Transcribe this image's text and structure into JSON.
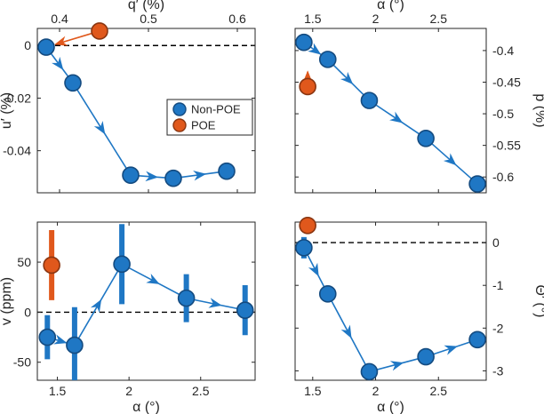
{
  "colors": {
    "non_poe": "#1f77c4",
    "non_poe_edge": "#144b80",
    "poe": "#e0581c",
    "poe_edge": "#8a3510",
    "axis": "#262626"
  },
  "legend": [
    {
      "label": "Non-POE",
      "color": "#1f77c4"
    },
    {
      "label": "POE",
      "color": "#e0581c"
    }
  ],
  "chart_data": [
    {
      "id": "top_left",
      "type": "scatter",
      "title": "",
      "xlabel": "q′ (%)",
      "ylabel": "u′ (%)",
      "xlabel_position": "top",
      "ylabel_position": "left",
      "xlim": [
        0.375,
        0.62
      ],
      "ylim": [
        -0.056,
        0.0065
      ],
      "xticks": [
        0.4,
        0.5,
        0.6
      ],
      "xticklabels": [
        "0.4",
        "0.5",
        "0.6"
      ],
      "yticks": [
        0,
        -0.02,
        -0.04
      ],
      "yticklabels": [
        "0",
        "-0.02",
        "-0.04"
      ],
      "reference_line_y": 0,
      "series": [
        {
          "name": "Non-POE",
          "x": [
            0.385,
            0.415,
            0.48,
            0.528,
            0.588
          ],
          "y": [
            -0.0006,
            -0.0142,
            -0.0493,
            -0.0505,
            -0.0478
          ],
          "yerr": [
            0.0025,
            0.001,
            0.0012,
            0.001,
            0.001
          ]
        },
        {
          "name": "POE",
          "x": [
            0.445
          ],
          "y": [
            0.0055
          ],
          "yerr": [
            0
          ]
        }
      ],
      "poe_arrow_to": [
        0.385,
        -0.0006
      ]
    },
    {
      "id": "top_right",
      "type": "scatter",
      "title": "",
      "xlabel": "α (°)",
      "ylabel": "p (%)",
      "xlabel_position": "top",
      "ylabel_position": "right",
      "xlim": [
        1.36,
        2.88
      ],
      "ylim": [
        -0.625,
        -0.365
      ],
      "xticks": [
        1.5,
        2,
        2.5
      ],
      "xticklabels": [
        "1.5",
        "2",
        "2.5"
      ],
      "yticks": [
        -0.4,
        -0.45,
        -0.5,
        -0.55,
        -0.6
      ],
      "yticklabels": [
        "-0.4",
        "-0.45",
        "-0.5",
        "-0.55",
        "-0.6"
      ],
      "series": [
        {
          "name": "Non-POE",
          "x": [
            1.43,
            1.62,
            1.95,
            2.4,
            2.81
          ],
          "y": [
            -0.387,
            -0.414,
            -0.479,
            -0.539,
            -0.611
          ],
          "yerr": [
            0.004,
            0.004,
            0.004,
            0.004,
            0.004
          ]
        },
        {
          "name": "POE",
          "x": [
            1.46
          ],
          "y": [
            -0.457
          ],
          "yerr": [
            0
          ]
        }
      ],
      "poe_arrow_to": [
        1.46,
        -0.418
      ]
    },
    {
      "id": "bottom_left",
      "type": "scatter",
      "title": "",
      "xlabel": "α (°)",
      "ylabel": "v (ppm)",
      "xlabel_position": "bottom",
      "ylabel_position": "left",
      "xlim": [
        1.36,
        2.88
      ],
      "ylim": [
        -68,
        90
      ],
      "xticks": [
        1.5,
        2,
        2.5
      ],
      "xticklabels": [
        "1.5",
        "2",
        "2.5"
      ],
      "yticks": [
        50,
        0,
        -50
      ],
      "yticklabels": [
        "50",
        "0",
        "-50"
      ],
      "reference_line_y": 0,
      "series": [
        {
          "name": "Non-POE",
          "x": [
            1.43,
            1.62,
            1.95,
            2.4,
            2.81
          ],
          "y": [
            -25,
            -33,
            48,
            14,
            2
          ],
          "yerr": [
            22,
            38,
            40,
            24,
            25
          ]
        },
        {
          "name": "POE",
          "x": [
            1.46
          ],
          "y": [
            47
          ],
          "yerr": [
            35
          ]
        }
      ]
    },
    {
      "id": "bottom_right",
      "type": "scatter",
      "title": "",
      "xlabel": "α (°)",
      "ylabel": "Θ′ (°)",
      "xlabel_position": "bottom",
      "ylabel_position": "right",
      "xlim": [
        1.36,
        2.88
      ],
      "ylim": [
        -3.22,
        0.48
      ],
      "xticks": [
        1.5,
        2,
        2.5
      ],
      "xticklabels": [
        "1.5",
        "2",
        "2.5"
      ],
      "yticks": [
        0,
        -1,
        -2,
        -3
      ],
      "yticklabels": [
        "0",
        "-1",
        "-2",
        "-3"
      ],
      "reference_line_y": 0,
      "series": [
        {
          "name": "Non-POE",
          "x": [
            1.43,
            1.62,
            1.95,
            2.4,
            2.81
          ],
          "y": [
            -0.12,
            -1.2,
            -3.02,
            -2.67,
            -2.27
          ],
          "yerr": [
            0.25,
            0.1,
            0.1,
            0.1,
            0.1
          ]
        },
        {
          "name": "POE",
          "x": [
            1.46
          ],
          "y": [
            0.4
          ],
          "yerr": [
            0
          ]
        }
      ]
    }
  ]
}
